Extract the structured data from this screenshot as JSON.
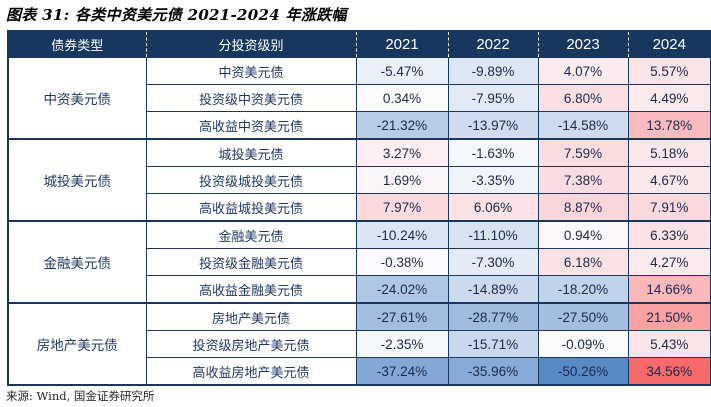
{
  "title": "图表 31: 各类中资美元债 2021-2024 年涨跌幅",
  "source": "来源: Wind, 国金证券研究所",
  "colors": {
    "header_bg": "#17375E",
    "border": "#17375E",
    "header_text": "#FFFFFF",
    "label_text": "#1F3864",
    "value_text": "#1B2A4A",
    "heat_blue": "#5A8AC6",
    "heat_white": "#FCFCFF",
    "heat_red": "#F8696B"
  },
  "chart_data": {
    "type": "table",
    "title": "各类中资美元债 2021-2024 年涨跌幅",
    "columns": [
      "债券类型",
      "分投资级别",
      "2021",
      "2022",
      "2023",
      "2024"
    ],
    "heatmap": {
      "style": "3-color scale on value cells",
      "min_value": -50.26,
      "mid_value": 0,
      "max_value": 34.56,
      "min_color": "#5A8AC6",
      "mid_color": "#FCFCFF",
      "max_color": "#F8696B"
    },
    "groups": [
      {
        "type": "中资美元债",
        "rows": [
          {
            "label": "中资美元债",
            "values_pct": [
              -5.47,
              -9.89,
              4.07,
              5.57
            ],
            "display": [
              "-5.47%",
              "-9.89%",
              "4.07%",
              "5.57%"
            ],
            "bg": [
              "#EAF0F9",
              "#DCE6F4",
              "#FBEBEE",
              "#FBE4E7"
            ]
          },
          {
            "label": "投资级中资美元债",
            "values_pct": [
              0.34,
              -7.95,
              6.8,
              4.49
            ],
            "display": [
              "0.34%",
              "-7.95%",
              "6.80%",
              "4.49%"
            ],
            "bg": [
              "#FCFBFE",
              "#E2EAF6",
              "#FBDFE2",
              "#FBE9EC"
            ]
          },
          {
            "label": "高收益中资美元债",
            "values_pct": [
              -21.32,
              -13.97,
              -14.58,
              13.78
            ],
            "display": [
              "-21.32%",
              "-13.97%",
              "-14.58%",
              "13.78%"
            ],
            "bg": [
              "#B7CCE7",
              "#CFDCEF",
              "#CDDBEF",
              "#F9BBBE"
            ]
          }
        ]
      },
      {
        "type": "城投美元债",
        "rows": [
          {
            "label": "城投美元债",
            "values_pct": [
              3.27,
              -1.63,
              7.59,
              5.18
            ],
            "display": [
              "3.27%",
              "-1.63%",
              "7.59%",
              "5.18%"
            ],
            "bg": [
              "#FCEEF1",
              "#F7F8FD",
              "#FBDCDF",
              "#FBE6E9"
            ]
          },
          {
            "label": "投资级城投美元债",
            "values_pct": [
              1.69,
              -3.35,
              7.38,
              4.67
            ],
            "display": [
              "1.69%",
              "-3.35%",
              "7.38%",
              "4.67%"
            ],
            "bg": [
              "#FCF5F8",
              "#F1F4FB",
              "#FBDCE0",
              "#FBE8EB"
            ]
          },
          {
            "label": "高收益城投美元债",
            "values_pct": [
              7.97,
              6.06,
              8.87,
              7.91
            ],
            "display": [
              "7.97%",
              "6.06%",
              "8.87%",
              "7.91%"
            ],
            "bg": [
              "#FBDADD",
              "#FBE2E5",
              "#FBD6D9",
              "#FBDADD"
            ]
          }
        ]
      },
      {
        "type": "金融美元债",
        "rows": [
          {
            "label": "金融美元债",
            "values_pct": [
              -10.24,
              -11.1,
              0.94,
              6.33
            ],
            "display": [
              "-10.24%",
              "-11.10%",
              "0.94%",
              "6.33%"
            ],
            "bg": [
              "#DBE5F3",
              "#D8E3F2",
              "#FCF8FB",
              "#FBE1E4"
            ]
          },
          {
            "label": "投资级金融美元债",
            "values_pct": [
              -0.38,
              -7.3,
              6.18,
              4.27
            ],
            "display": [
              "-0.38%",
              "-7.30%",
              "6.18%",
              "4.27%"
            ],
            "bg": [
              "#FBFBFF",
              "#E4EBF7",
              "#FBE2E5",
              "#FBEAED"
            ]
          },
          {
            "label": "高收益金融美元债",
            "values_pct": [
              -24.02,
              -14.89,
              -18.2,
              14.66
            ],
            "display": [
              "-24.02%",
              "-14.89%",
              "-18.20%",
              "14.66%"
            ],
            "bg": [
              "#AFC6E4",
              "#CCDAEE",
              "#C1D3EA",
              "#FAB8BB"
            ]
          }
        ]
      },
      {
        "type": "房地产美元债",
        "rows": [
          {
            "label": "房地产美元债",
            "values_pct": [
              -27.61,
              -28.77,
              -27.5,
              21.5
            ],
            "display": [
              "-27.61%",
              "-28.77%",
              "-27.50%",
              "21.50%"
            ],
            "bg": [
              "#A3BDE0",
              "#9FBBDE",
              "#A3BEE0",
              "#F9A1A3"
            ]
          },
          {
            "label": "投资级房地产美元债",
            "values_pct": [
              -2.35,
              -15.71,
              -0.09,
              5.43
            ],
            "display": [
              "-2.35%",
              "-15.71%",
              "-0.09%",
              "5.43%"
            ],
            "bg": [
              "#F4F7FC",
              "#C9D8ED",
              "#FCFCFF",
              "#FBE5E8"
            ]
          },
          {
            "label": "高收益房地产美元债",
            "values_pct": [
              -37.24,
              -35.96,
              -50.26,
              34.56
            ],
            "display": [
              "-37.24%",
              "-35.96%",
              "-50.26%",
              "34.56%"
            ],
            "bg": [
              "#84A8D5",
              "#88AAD6",
              "#5A8AC6",
              "#F8696B"
            ]
          }
        ]
      }
    ]
  }
}
